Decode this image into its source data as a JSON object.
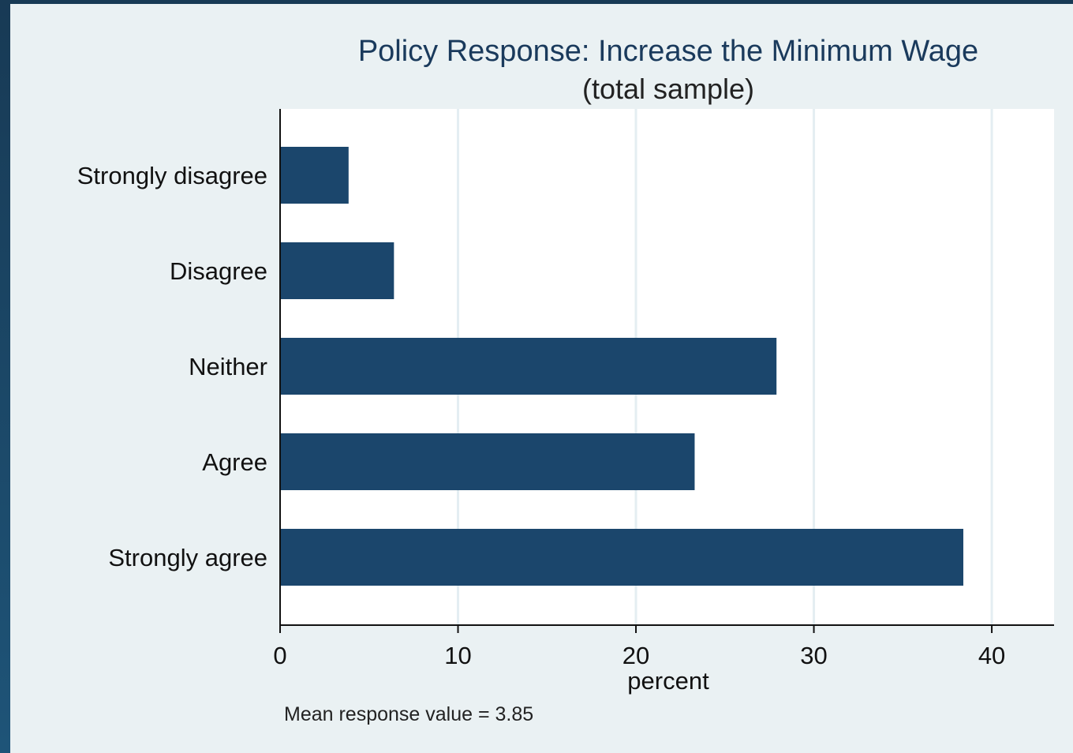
{
  "chart_data": {
    "type": "bar",
    "orientation": "horizontal",
    "title": "Policy Response: Increase the Minimum Wage",
    "subtitle": "(total sample)",
    "xlabel": "percent",
    "ylabel": "",
    "categories": [
      "Strongly disagree",
      "Disagree",
      "Neither",
      "Agree",
      "Strongly agree"
    ],
    "values": [
      3.85,
      6.4,
      27.9,
      23.3,
      38.4
    ],
    "xlim": [
      0,
      43.5
    ],
    "xticks": [
      0,
      10,
      20,
      30,
      40
    ],
    "grid": true,
    "note": "Mean response value = 3.85",
    "colors": {
      "bar": "#1b466c",
      "plot_bg": "#ffffff",
      "grid": "#e4eef2",
      "frame_bg": "#eaf1f3"
    }
  }
}
